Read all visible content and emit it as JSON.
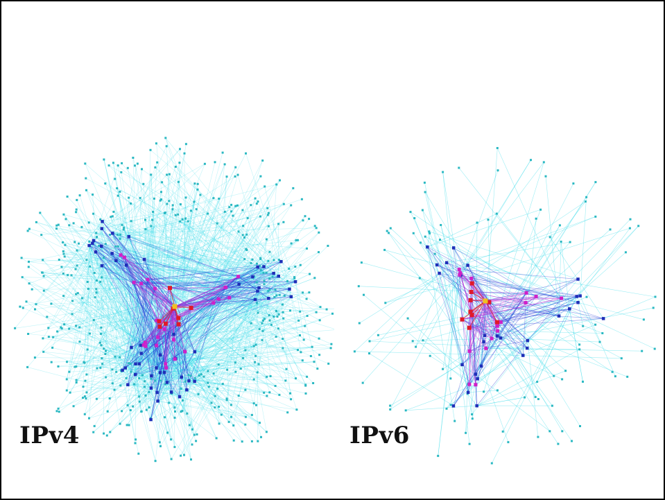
{
  "panels": [
    {
      "id": "ipv4",
      "label": "IPv4"
    },
    {
      "id": "ipv6",
      "label": "IPv6"
    }
  ],
  "colors": {
    "background": "#ffffff",
    "border": "#000000",
    "edge_outer": "#22d8e6",
    "edge_mid": "#2a3fd8",
    "edge_inner": "#c030d8",
    "node_outer": "#2ab8c2",
    "node_mid": "#1f2fb8",
    "node_inner": "#d020c8",
    "node_core": "#e01a2a",
    "node_root": "#f0c020"
  }
}
